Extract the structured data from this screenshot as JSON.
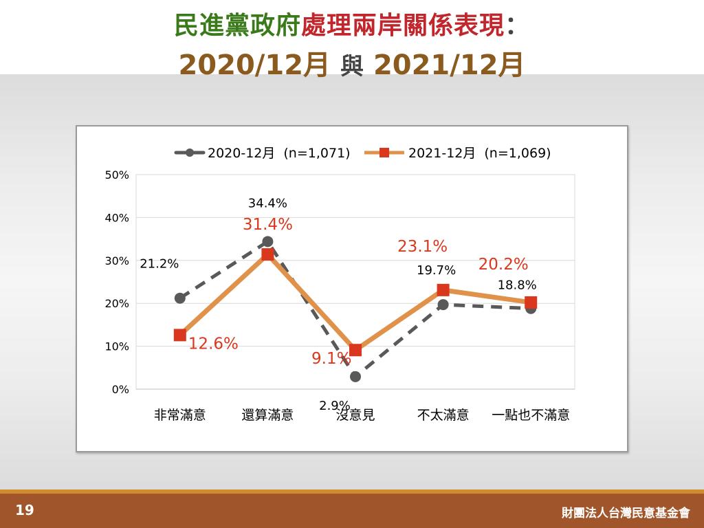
{
  "title": {
    "line1_part1": "民進黨政府",
    "line1_part2": "處理兩岸關係表現",
    "line1_sep": "：",
    "line2_a": "2020/12月",
    "line2_mid": "與",
    "line2_b": "2021/12月"
  },
  "footer": {
    "page_number": "19",
    "organization": "財團法人台灣民意基金會"
  },
  "colors": {
    "series1": "#595959",
    "series2_line": "#e0914a",
    "series2_marker": "#d9381e",
    "series2_label": "#d9381e",
    "title_green": "#3a7a1a",
    "title_red": "#c0262b",
    "title_brown": "#8a5a1e",
    "footer_bg": "#a0552b"
  },
  "chart_data": {
    "type": "line",
    "categories": [
      "非常滿意",
      "還算滿意",
      "沒意見",
      "不太滿意",
      "一點也不滿意"
    ],
    "series": [
      {
        "name": "2020-12月",
        "n_label": "(n=1,071)",
        "values": [
          21.2,
          34.4,
          2.9,
          19.7,
          18.8
        ],
        "labels": [
          "21.2%",
          "34.4%",
          "2.9%",
          "19.7%",
          "18.8%"
        ],
        "style": "dashed",
        "marker": "circle"
      },
      {
        "name": "2021-12月",
        "n_label": "(n=1,069)",
        "values": [
          12.6,
          31.4,
          9.1,
          23.1,
          20.2
        ],
        "labels": [
          "12.6%",
          "31.4%",
          "9.1%",
          "23.1%",
          "20.2%"
        ],
        "style": "solid",
        "marker": "square"
      }
    ],
    "ylim": [
      0,
      50
    ],
    "yticks": [
      0,
      10,
      20,
      30,
      40,
      50
    ],
    "ytick_labels": [
      "0%",
      "10%",
      "20%",
      "30%",
      "40%",
      "50%"
    ],
    "grid": true,
    "legend_position": "top"
  }
}
